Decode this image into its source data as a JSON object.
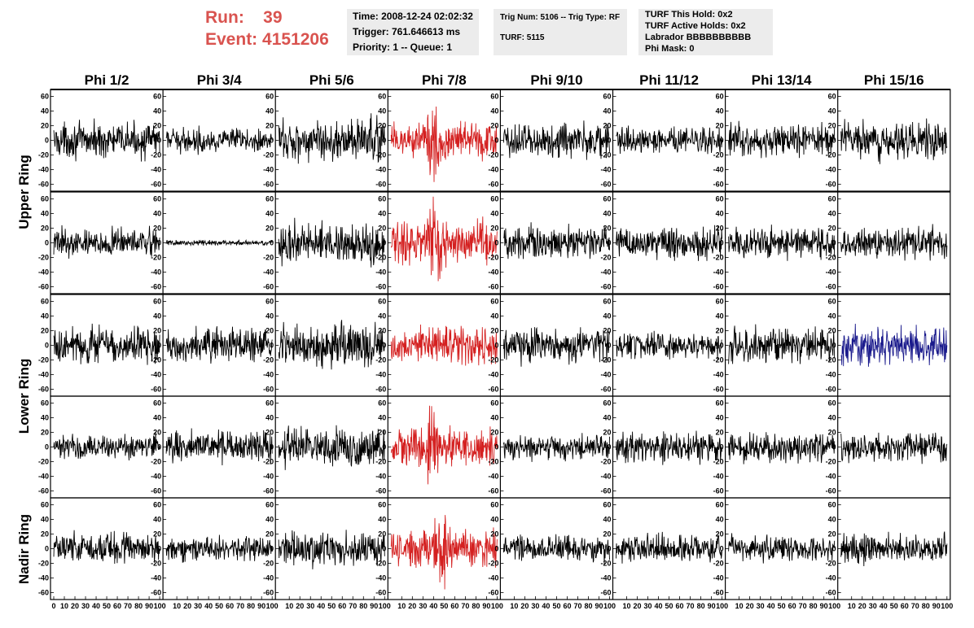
{
  "header": {
    "run_label": "Run:",
    "run_value": "39",
    "event_label": "Event:",
    "event_value": "4151206",
    "time": "Time: 2008-12-24 02:02:32",
    "trigger": "Trigger: 761.646613 ms",
    "priority": "Priority: 1 -- Queue: 1",
    "trig_num": "Trig Num: 5106 -- Trig Type: RF",
    "turf": "TURF: 5115",
    "turf_this_hold": "TURF This Hold: 0x2",
    "turf_active_holds": "TURF Active Holds: 0x2",
    "labrador": "Labrador BBBBBBBBBB",
    "phi_mask": "Phi Mask: 0"
  },
  "chart_data": {
    "type": "line",
    "columns": [
      "Phi 1/2",
      "Phi 3/4",
      "Phi 5/6",
      "Phi 7/8",
      "Phi 9/10",
      "Phi 11/12",
      "Phi 13/14",
      "Phi 15/16"
    ],
    "rows": [
      "Upper Ring",
      "Lower Ring",
      "Nadir Ring"
    ],
    "y_ticks": [
      60,
      40,
      20,
      0,
      -20,
      -40,
      -60
    ],
    "x_ticks_first": [
      "0",
      "10",
      "20",
      "30",
      "40",
      "50",
      "60",
      "70",
      "80",
      "90",
      "100"
    ],
    "x_ticks_other": [
      "10",
      "20",
      "30",
      "40",
      "50",
      "60",
      "70",
      "80",
      "90",
      "100"
    ],
    "ylim": [
      -65,
      65
    ],
    "xlim": [
      0,
      100
    ],
    "samples_per_trace": 260,
    "colors": {
      "default": "#000000",
      "triggered": "#d42020",
      "blue": "#1a1a8c",
      "title": "#d9534f",
      "info_bg": "#ececec"
    },
    "panels": [
      {
        "row": 0,
        "col": 0,
        "amp": 16,
        "color": "default"
      },
      {
        "row": 0,
        "col": 1,
        "amp": 11,
        "color": "default"
      },
      {
        "row": 0,
        "col": 2,
        "amp": 20,
        "color": "default"
      },
      {
        "row": 0,
        "col": 3,
        "amp": 18,
        "color": "triggered",
        "pulse": 40
      },
      {
        "row": 0,
        "col": 4,
        "amp": 17,
        "color": "default"
      },
      {
        "row": 0,
        "col": 5,
        "amp": 12,
        "color": "default"
      },
      {
        "row": 0,
        "col": 6,
        "amp": 15,
        "color": "default"
      },
      {
        "row": 0,
        "col": 7,
        "amp": 17,
        "color": "default"
      },
      {
        "row": 1,
        "col": 0,
        "amp": 13,
        "color": "default"
      },
      {
        "row": 1,
        "col": 1,
        "amp": 2.5,
        "color": "default"
      },
      {
        "row": 1,
        "col": 2,
        "amp": 19,
        "color": "default"
      },
      {
        "row": 1,
        "col": 3,
        "amp": 20,
        "color": "triggered",
        "pulse": 42
      },
      {
        "row": 1,
        "col": 4,
        "amp": 15,
        "color": "default"
      },
      {
        "row": 1,
        "col": 5,
        "amp": 15,
        "color": "default"
      },
      {
        "row": 1,
        "col": 6,
        "amp": 15,
        "color": "default"
      },
      {
        "row": 1,
        "col": 7,
        "amp": 15,
        "color": "default"
      },
      {
        "row": 2,
        "col": 0,
        "amp": 18,
        "color": "default"
      },
      {
        "row": 2,
        "col": 1,
        "amp": 16,
        "color": "default"
      },
      {
        "row": 2,
        "col": 2,
        "amp": 20,
        "color": "default"
      },
      {
        "row": 2,
        "col": 3,
        "amp": 18,
        "color": "triggered"
      },
      {
        "row": 2,
        "col": 4,
        "amp": 16,
        "color": "default"
      },
      {
        "row": 2,
        "col": 5,
        "amp": 12,
        "color": "default"
      },
      {
        "row": 2,
        "col": 6,
        "amp": 17,
        "color": "default"
      },
      {
        "row": 2,
        "col": 7,
        "amp": 18,
        "color": "blue"
      },
      {
        "row": 3,
        "col": 0,
        "amp": 12,
        "color": "default"
      },
      {
        "row": 3,
        "col": 1,
        "amp": 15,
        "color": "default"
      },
      {
        "row": 3,
        "col": 2,
        "amp": 18,
        "color": "default"
      },
      {
        "row": 3,
        "col": 3,
        "amp": 18,
        "color": "triggered",
        "pulse": 38
      },
      {
        "row": 3,
        "col": 4,
        "amp": 12,
        "color": "default"
      },
      {
        "row": 3,
        "col": 5,
        "amp": 14,
        "color": "default"
      },
      {
        "row": 3,
        "col": 6,
        "amp": 14,
        "color": "default"
      },
      {
        "row": 3,
        "col": 7,
        "amp": 15,
        "color": "default"
      },
      {
        "row": 4,
        "col": 0,
        "amp": 15,
        "color": "default"
      },
      {
        "row": 4,
        "col": 1,
        "amp": 12,
        "color": "default"
      },
      {
        "row": 4,
        "col": 2,
        "amp": 16,
        "color": "default"
      },
      {
        "row": 4,
        "col": 3,
        "amp": 17,
        "color": "triggered",
        "pulse": 48
      },
      {
        "row": 4,
        "col": 4,
        "amp": 12,
        "color": "default"
      },
      {
        "row": 4,
        "col": 5,
        "amp": 13,
        "color": "default"
      },
      {
        "row": 4,
        "col": 6,
        "amp": 13,
        "color": "default"
      },
      {
        "row": 4,
        "col": 7,
        "amp": 13,
        "color": "default"
      }
    ]
  }
}
